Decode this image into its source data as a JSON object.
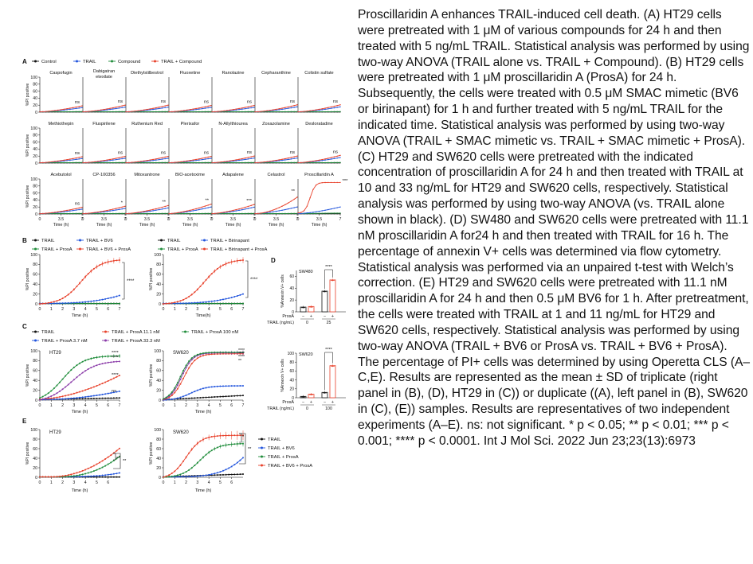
{
  "caption": "Proscillaridin A enhances TRAIL-induced cell death. (A) HT29 cells were pretreated with 1 μM of various compounds for 24 h and then treated with 5 ng/mL TRAIL. Statistical analysis was performed by using two-way ANOVA (TRAIL alone vs. TRAIL + Compound). (B) HT29 cells were pretreated with 1 μM proscillaridin A (ProsA) for 24 h. Subsequently, the cells were treated with 0.5 μM SMAC mimetic (BV6 or birinapant) for 1 h and further treated with 5 ng/mL TRAIL for the indicated time. Statistical analysis was performed by using two-way ANOVA (TRAIL + SMAC mimetic vs. TRAIL + SMAC mimetic + ProsA). (C) HT29 and SW620 cells were pretreated with the indicated concentration of proscillaridin A for 24 h and then treated with TRAIL at 10 and 33 ng/mL for HT29 and SW620 cells, respectively. Statistical analysis was performed by using two-way ANOVA (vs. TRAIL alone shown in black). (D) SW480 and SW620 cells were pretreated with 11.1 nM proscillaridin A for24 h and then treated with TRAIL for 16 h. The percentage of annexin V+ cells was determined via flow cytometry. Statistical analysis was performed via an unpaired t-test with Welch’s correction. (E) HT29 and SW620 cells were pretreated with 11.1 nM proscillaridin A for 24 h and then 0.5 μM BV6 for 1 h. After pretreatment, the cells were treated with TRAIL at 1 and 11 ng/mL for HT29 and SW620 cells, respectively. Statistical analysis was performed by using two-way ANOVA (TRAIL + BV6 or ProsA vs. TRAIL + BV6 + ProsA). The percentage of PI+ cells was determined by using Operetta CLS (A–C,E). Results are represented as the mean ± SD of triplicate (right panel in (B), (D), HT29 in (C)) or duplicate ((A), left panel in (B), SW620 in (C), (E)) samples. Results are representatives of two independent experiments (A–E). ns: not significant. * p < 0.05; ** p < 0.01; *** p < 0.001; **** p < 0.0001. Int J Mol Sci. 2022 Jun 23;23(13):6973",
  "figure": {
    "panel_letters": [
      "A",
      "B",
      "C",
      "D",
      "E"
    ],
    "colors": {
      "black": "#111111",
      "blue": "#2255dd",
      "green": "#1e8c3a",
      "red": "#e8402a",
      "purple": "#8a3aa8"
    },
    "panel_a": {
      "legend": [
        "Control",
        "TRAIL",
        "Compound",
        "TRAIL + Compound"
      ],
      "ylabel": "%PI positive",
      "xlabel": "Time (h)",
      "yticks": [
        "100",
        "80",
        "60",
        "40",
        "20",
        "0"
      ],
      "xticks": [
        "0",
        "3.5",
        "7"
      ],
      "plots": [
        {
          "name": "Caspofugin",
          "sig": "ns",
          "red_end": 18
        },
        {
          "name": "Dabigatran etexilate",
          "sig": "ns",
          "red_end": 20
        },
        {
          "name": "Diethylstilbestrol",
          "sig": "ns",
          "red_end": 20
        },
        {
          "name": "Fluoxetine",
          "sig": "ns",
          "red_end": 19
        },
        {
          "name": "Ranolazine",
          "sig": "ns",
          "red_end": 19
        },
        {
          "name": "Cepharanthine",
          "sig": "ns",
          "red_end": 21
        },
        {
          "name": "Colistin sulfate",
          "sig": "ns",
          "red_end": 21
        },
        {
          "name": "Methiothepin",
          "sig": "ns",
          "red_end": 18
        },
        {
          "name": "Fluspirilene",
          "sig": "ns",
          "red_end": 19
        },
        {
          "name": "Ruthenium Red",
          "sig": "ns",
          "red_end": 19
        },
        {
          "name": "Plerixafor",
          "sig": "ns",
          "red_end": 19
        },
        {
          "name": "N-Allylthiourea",
          "sig": "ns",
          "red_end": 20
        },
        {
          "name": "Zoxazolamine",
          "sig": "ns",
          "red_end": 20
        },
        {
          "name": "Desloratadine",
          "sig": "ns",
          "red_end": 22
        },
        {
          "name": "Acebutolol",
          "sig": "ns",
          "red_end": 19
        },
        {
          "name": "CP-100356",
          "sig": "*",
          "red_end": 22
        },
        {
          "name": "Mitoxantrone",
          "sig": "**",
          "red_end": 24
        },
        {
          "name": "BIO-acetoxime",
          "sig": "**",
          "red_end": 28
        },
        {
          "name": "Adapalene",
          "sig": "***",
          "red_end": 27
        },
        {
          "name": "Celastrol",
          "sig": "**",
          "red_end": 48
        },
        {
          "name": "Proscillaridin A",
          "sig": "***",
          "red_end": 90
        }
      ]
    },
    "panel_b": {
      "left_legend": [
        "TRAIL",
        "TRAIL + BV6",
        "TRAIL + ProsA",
        "TRAIL + BV6 + ProsA"
      ],
      "right_legend": [
        "TRAIL",
        "TRAIL + Birinapant",
        "TRAIL + ProsA",
        "TRAIL + Birinapant + ProsA"
      ],
      "ylabel": "%PI positive",
      "left_xlabel": "Time (h)",
      "right_xlabel": "Time(h)",
      "yticks": [
        "100",
        "80",
        "60",
        "40",
        "20",
        "0"
      ],
      "xticks": [
        "0",
        "1",
        "2",
        "3",
        "4",
        "5",
        "6",
        "7"
      ],
      "sig": "****"
    },
    "panel_c": {
      "legend": [
        "TRAIL",
        "TRAIL + ProsA 11.1 nM",
        "TRAIL + ProsA 100 nM",
        "TRAIL + ProsA 3.7 nM",
        "TRAIL + ProsA 33.3 nM"
      ],
      "ylabel": "%PI positive",
      "xlabel": "Time (h)",
      "yticks": [
        "100",
        "80",
        "60",
        "40",
        "20",
        "0"
      ],
      "xticks": [
        "0",
        "1",
        "2",
        "3",
        "4",
        "5",
        "6",
        "7"
      ],
      "ht29": {
        "title": "HT29",
        "sigs": [
          "****",
          "****",
          "****",
          "ns"
        ]
      },
      "sw620": {
        "title": "SW620",
        "sigs": [
          "****",
          "****",
          "****",
          "**"
        ]
      }
    },
    "panel_d": {
      "ylabel": "%Annexin V+ cells",
      "prosa_label": "ProsA",
      "trail_label": "TRAIL (ng/mL)",
      "minus": "−",
      "plus": "+",
      "sw480": {
        "title": "SW480",
        "yticks": [
          "60",
          "40",
          "20",
          "0"
        ],
        "trail_values": [
          "0",
          "25"
        ],
        "bars": [
          8,
          9,
          35,
          54
        ],
        "sig": "****"
      },
      "sw620": {
        "title": "SW620",
        "yticks": [
          "100",
          "80",
          "60",
          "40",
          "20",
          "0"
        ],
        "trail_values": [
          "0",
          "100"
        ],
        "bars": [
          3,
          8,
          12,
          72
        ],
        "sig": "****"
      }
    },
    "panel_e": {
      "legend": [
        "TRAIL",
        "TRAIL + BV6",
        "TRAIL + ProsA",
        "TRAIL + BV6 + ProsA"
      ],
      "ylabel": "%PI positive",
      "xlabel": "Time (h)",
      "yticks": [
        "100",
        "80",
        "60",
        "40",
        "20",
        "0"
      ],
      "xticks": [
        "0",
        "1",
        "2",
        "3",
        "4",
        "5",
        "6"
      ],
      "ht29": {
        "title": "HT29",
        "sigs": [
          "**",
          "**"
        ]
      },
      "sw620": {
        "title": "SW620",
        "sigs": [
          "*",
          "**"
        ]
      }
    }
  }
}
